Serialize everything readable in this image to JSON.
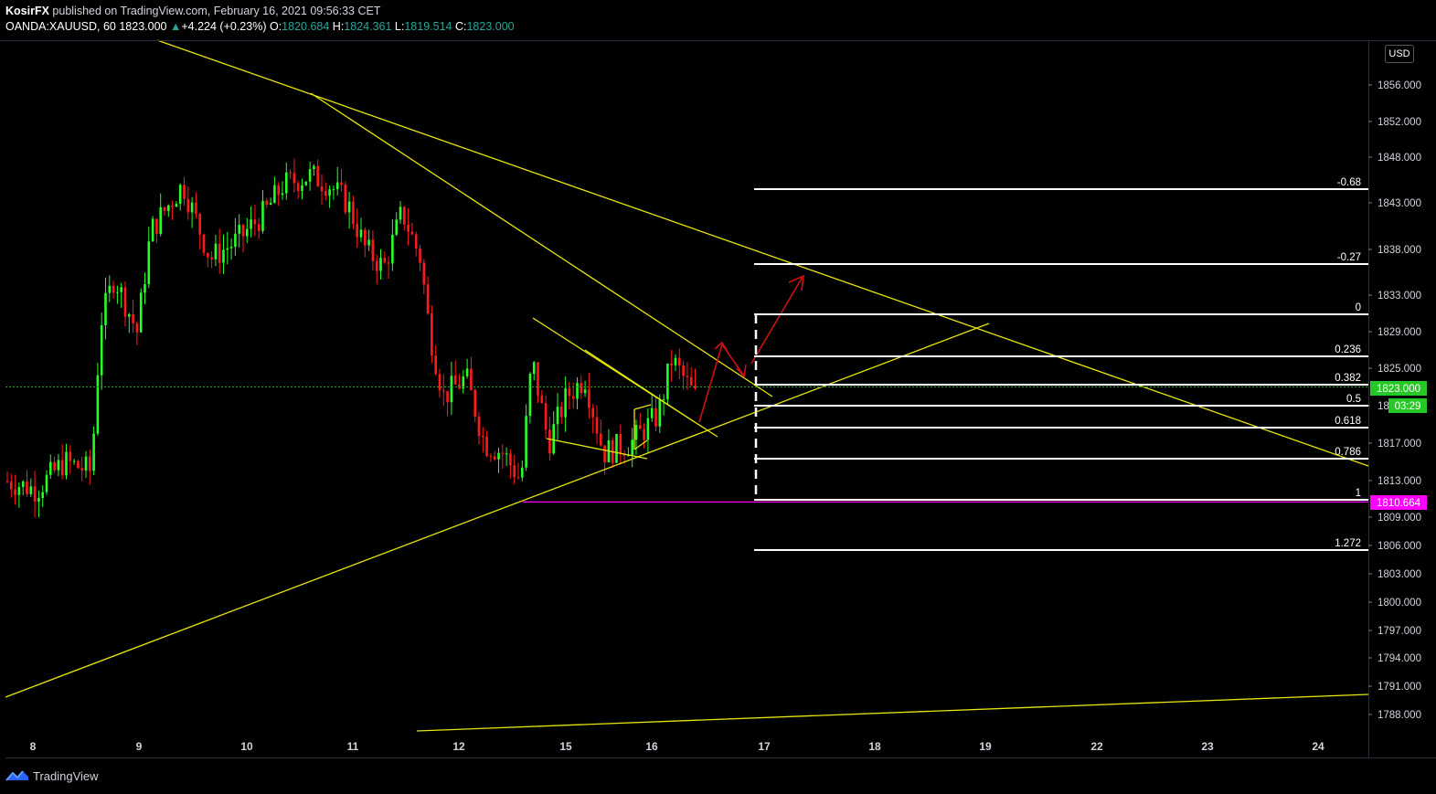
{
  "header": {
    "author": "KosirFX",
    "published": "published on TradingView.com, February 16, 2021 09:56:33 CET",
    "symbol": "OANDA:XAUUSD, 60",
    "last": "1823.000",
    "change": "+4.224 (+0.23%)",
    "o_label": "O:",
    "o": "1820.684",
    "h_label": "H:",
    "h": "1824.361",
    "l_label": "L:",
    "l": "1819.514",
    "c_label": "C:",
    "c": "1823.000"
  },
  "currency": "USD",
  "footer": {
    "brand": "TradingView"
  },
  "colors": {
    "up": "#26ff26",
    "down": "#ff1a1a",
    "trend": "#e6e60a",
    "fib": "#ffffff",
    "low_line": "#ff00ff",
    "arrow": "#cc1111",
    "price_badge": "#26c826"
  },
  "chart_data": {
    "type": "candlestick",
    "ylim": [
      1786,
      1860
    ],
    "y_ticks": [
      "1856.000",
      "1852.000",
      "1848.000",
      "1843.000",
      "1838.000",
      "1833.000",
      "1829.000",
      "1825.000",
      "1821.000",
      "1817.000",
      "1813.000",
      "1809.000",
      "1806.000",
      "1803.000",
      "1800.000",
      "1797.000",
      "1794.000",
      "1791.000",
      "1788.000"
    ],
    "x_ticks": [
      "8",
      "9",
      "10",
      "11",
      "12",
      "15",
      "16",
      "17",
      "18",
      "19",
      "22",
      "23",
      "24"
    ],
    "current_price": "1823.000",
    "countdown": "03:29",
    "low_price": "1810.664",
    "fib_levels": [
      {
        "label": "-0.68",
        "price": 1844.8
      },
      {
        "label": "-0.27",
        "price": 1836.4
      },
      {
        "label": "0",
        "price": 1831.0
      },
      {
        "label": "0.236",
        "price": 1826.4
      },
      {
        "label": "0.382",
        "price": 1823.4
      },
      {
        "label": "0.5",
        "price": 1821.1
      },
      {
        "label": "0.618",
        "price": 1818.6
      },
      {
        "label": "0.786",
        "price": 1815.2
      },
      {
        "label": "1",
        "price": 1810.8
      },
      {
        "label": "1.272",
        "price": 1805.4
      }
    ]
  }
}
